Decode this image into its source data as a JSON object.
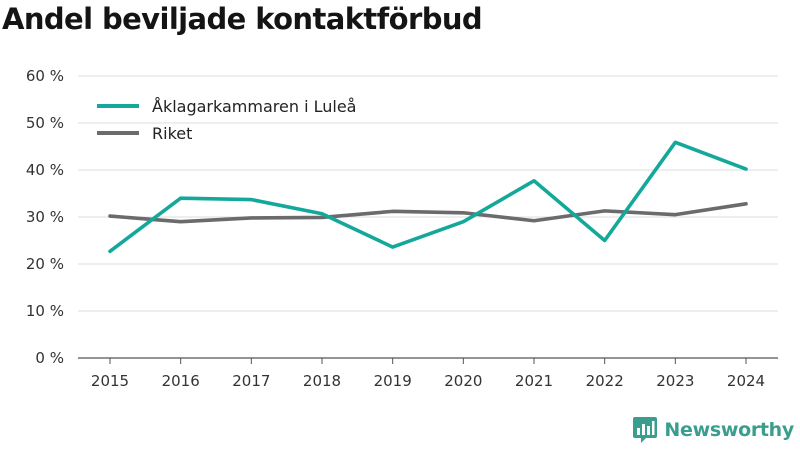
{
  "title": "Andel beviljade kontaktförbud",
  "brand": {
    "name": "Newsworthy",
    "color": "#3a9e8e"
  },
  "chart_data": {
    "type": "line",
    "title": "Andel beviljade kontaktförbud",
    "categories": [
      "2015",
      "2016",
      "2017",
      "2018",
      "2019",
      "2020",
      "2021",
      "2022",
      "2023",
      "2024"
    ],
    "series": [
      {
        "name": "Åklagarkammaren i Luleå",
        "color": "#14a89a",
        "values": [
          22.7,
          34.0,
          33.7,
          30.7,
          23.6,
          29.0,
          37.7,
          25.0,
          45.9,
          40.2
        ]
      },
      {
        "name": "Riket",
        "color": "#6b6b6e",
        "values": [
          30.2,
          29.0,
          29.8,
          29.9,
          31.2,
          30.9,
          29.2,
          31.3,
          30.5,
          32.8
        ]
      }
    ],
    "y_ticks": [
      "0 %",
      "10 %",
      "20 %",
      "30 %",
      "40 %",
      "50 %",
      "60 %"
    ],
    "ylim": [
      0,
      60
    ],
    "xlabel": "",
    "ylabel": "",
    "grid": true,
    "legend_position": "top-left"
  }
}
